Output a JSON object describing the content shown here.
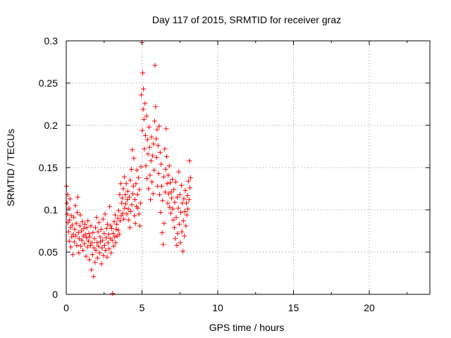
{
  "chart_data": {
    "type": "scatter",
    "title": "Day 117 of 2015, SRMTID for receiver graz",
    "xlabel": "GPS time / hours",
    "ylabel": "SRMTID / TECUs",
    "xlim": [
      0,
      24
    ],
    "ylim": [
      0,
      0.3
    ],
    "xticks": [
      0,
      5,
      10,
      15,
      20
    ],
    "xtick_labels": [
      "0",
      "5",
      "10",
      "15",
      "20"
    ],
    "yticks": [
      0,
      0.05,
      0.1,
      0.15,
      0.2,
      0.25,
      0.3
    ],
    "ytick_labels": [
      "0",
      "0.05",
      "0.1",
      "0.15",
      "0.2",
      "0.25",
      "0.3"
    ],
    "grid": true,
    "marker": "+",
    "color": "#ff0000",
    "series": [
      {
        "points": [
          [
            0.02,
            0.128
          ],
          [
            0.05,
            0.108
          ],
          [
            0.08,
            0.095
          ],
          [
            0.1,
            0.118
          ],
          [
            0.12,
            0.085
          ],
          [
            0.15,
            0.074
          ],
          [
            0.18,
            0.102
          ],
          [
            0.2,
            0.063
          ],
          [
            0.22,
            0.088
          ],
          [
            0.25,
            0.113
          ],
          [
            0.28,
            0.079
          ],
          [
            0.3,
            0.056
          ],
          [
            0.33,
            0.093
          ],
          [
            0.36,
            0.068
          ],
          [
            0.4,
            0.082
          ],
          [
            0.43,
            0.047
          ],
          [
            0.46,
            0.071
          ],
          [
            0.5,
            0.091
          ],
          [
            0.53,
            0.062
          ],
          [
            0.56,
            0.077
          ],
          [
            0.6,
            0.105
          ],
          [
            0.63,
            0.069
          ],
          [
            0.66,
            0.084
          ],
          [
            0.7,
            0.058
          ],
          [
            0.73,
            0.097
          ],
          [
            0.76,
            0.115
          ],
          [
            0.8,
            0.073
          ],
          [
            0.83,
            0.049
          ],
          [
            0.86,
            0.066
          ],
          [
            0.9,
            0.081
          ],
          [
            0.93,
            0.094
          ],
          [
            0.96,
            0.057
          ],
          [
            1.0,
            0.075
          ],
          [
            1.03,
            0.064
          ],
          [
            1.06,
            0.086
          ],
          [
            1.1,
            0.052
          ],
          [
            1.13,
            0.069
          ],
          [
            1.16,
            0.078
          ],
          [
            1.2,
            0.06
          ],
          [
            1.23,
            0.083
          ],
          [
            1.26,
            0.071
          ],
          [
            1.3,
            0.045
          ],
          [
            1.33,
            0.067
          ],
          [
            1.36,
            0.079
          ],
          [
            1.4,
            0.056
          ],
          [
            1.43,
            0.087
          ],
          [
            1.46,
            0.063
          ],
          [
            1.5,
            0.072
          ],
          [
            1.53,
            0.041
          ],
          [
            1.56,
            0.068
          ],
          [
            1.6,
            0.058
          ],
          [
            1.63,
            0.081
          ],
          [
            1.66,
            0.029
          ],
          [
            1.7,
            0.061
          ],
          [
            1.73,
            0.047
          ],
          [
            1.76,
            0.073
          ],
          [
            1.8,
            0.021
          ],
          [
            1.83,
            0.055
          ],
          [
            1.86,
            0.066
          ],
          [
            1.9,
            0.038
          ],
          [
            1.93,
            0.079
          ],
          [
            1.96,
            0.052
          ],
          [
            2.0,
            0.091
          ],
          [
            2.03,
            0.061
          ],
          [
            2.06,
            0.043
          ],
          [
            2.1,
            0.074
          ],
          [
            2.13,
            0.057
          ],
          [
            2.16,
            0.085
          ],
          [
            2.2,
            0.049
          ],
          [
            2.23,
            0.068
          ],
          [
            2.26,
            0.062
          ],
          [
            2.3,
            0.077
          ],
          [
            2.33,
            0.036
          ],
          [
            2.36,
            0.055
          ],
          [
            2.4,
            0.064
          ],
          [
            2.43,
            0.089
          ],
          [
            2.46,
            0.046
          ],
          [
            2.5,
            0.072
          ],
          [
            2.53,
            0.058
          ],
          [
            2.56,
            0.095
          ],
          [
            2.6,
            0.052
          ],
          [
            2.63,
            0.067
          ],
          [
            2.66,
            0.078
          ],
          [
            2.7,
            0.044
          ],
          [
            2.73,
            0.083
          ],
          [
            2.76,
            0.061
          ],
          [
            2.8,
            0.071
          ],
          [
            2.83,
            0.054
          ],
          [
            2.86,
            0.104
          ],
          [
            2.9,
            0.066
          ],
          [
            2.93,
            0.081
          ],
          [
            2.96,
            0.049
          ],
          [
            3.0,
            0.078
          ],
          [
            3.03,
            0.064
          ],
          [
            3.06,
            0.001
          ],
          [
            3.1,
            0.072
          ],
          [
            3.13,
            0.057
          ],
          [
            3.16,
            0.086
          ],
          [
            3.2,
            0.068
          ],
          [
            3.23,
            0.094
          ],
          [
            3.26,
            0.061
          ],
          [
            3.3,
            0.077
          ],
          [
            3.33,
            0.083
          ],
          [
            3.36,
            0.069
          ],
          [
            3.4,
            0.09
          ],
          [
            3.43,
            0.076
          ],
          [
            3.46,
            0.099
          ],
          [
            3.5,
            0.071
          ],
          [
            3.53,
            0.118
          ],
          [
            3.56,
            0.087
          ],
          [
            3.6,
            0.131
          ],
          [
            3.63,
            0.093
          ],
          [
            3.66,
            0.108
          ],
          [
            3.7,
            0.114
          ],
          [
            3.73,
            0.096
          ],
          [
            3.76,
            0.125
          ],
          [
            3.8,
            0.089
          ],
          [
            3.83,
            0.139
          ],
          [
            3.86,
            0.102
          ],
          [
            3.9,
            0.118
          ],
          [
            3.93,
            0.107
          ],
          [
            3.96,
            0.131
          ],
          [
            4.0,
            0.095
          ],
          [
            4.03,
            0.112
          ],
          [
            4.06,
            0.122
          ],
          [
            4.1,
            0.101
          ],
          [
            4.13,
            0.088
          ],
          [
            4.16,
            0.115
          ],
          [
            4.2,
            0.079
          ],
          [
            4.23,
            0.135
          ],
          [
            4.26,
            0.098
          ],
          [
            4.3,
            0.148
          ],
          [
            4.33,
            0.106
          ],
          [
            4.36,
            0.171
          ],
          [
            4.4,
            0.119
          ],
          [
            4.43,
            0.128
          ],
          [
            4.46,
            0.161
          ],
          [
            4.5,
            0.093
          ],
          [
            4.53,
            0.112
          ],
          [
            4.56,
            0.084
          ],
          [
            4.6,
            0.131
          ],
          [
            4.63,
            0.104
          ],
          [
            4.66,
            0.147
          ],
          [
            4.7,
            0.118
          ],
          [
            4.73,
            0.102
          ],
          [
            4.76,
            0.138
          ],
          [
            4.8,
            0.095
          ],
          [
            4.83,
            0.124
          ],
          [
            4.86,
            0.081
          ],
          [
            4.9,
            0.108
          ],
          [
            4.93,
            0.151
          ],
          [
            4.96,
            0.236
          ],
          [
            5.0,
            0.298
          ],
          [
            5.02,
            0.194
          ],
          [
            5.05,
            0.262
          ],
          [
            5.08,
            0.219
          ],
          [
            5.1,
            0.243
          ],
          [
            5.13,
            0.207
          ],
          [
            5.16,
            0.172
          ],
          [
            5.2,
            0.226
          ],
          [
            5.23,
            0.188
          ],
          [
            5.26,
            0.152
          ],
          [
            5.3,
            0.211
          ],
          [
            5.33,
            0.137
          ],
          [
            5.36,
            0.183
          ],
          [
            5.4,
            0.166
          ],
          [
            5.43,
            0.125
          ],
          [
            5.46,
            0.198
          ],
          [
            5.5,
            0.174
          ],
          [
            5.53,
            0.141
          ],
          [
            5.56,
            0.112
          ],
          [
            5.6,
            0.158
          ],
          [
            5.63,
            0.186
          ],
          [
            5.66,
            0.133
          ],
          [
            5.7,
            0.164
          ],
          [
            5.73,
            0.119
          ],
          [
            5.76,
            0.178
          ],
          [
            5.8,
            0.147
          ],
          [
            5.83,
            0.205
          ],
          [
            5.86,
            0.271
          ],
          [
            5.9,
            0.222
          ],
          [
            5.93,
            0.184
          ],
          [
            5.96,
            0.162
          ],
          [
            6.0,
            0.195
          ],
          [
            6.03,
            0.128
          ],
          [
            6.06,
            0.176
          ],
          [
            6.1,
            0.143
          ],
          [
            6.13,
            0.199
          ],
          [
            6.16,
            0.118
          ],
          [
            6.2,
            0.168
          ],
          [
            6.23,
            0.097
          ],
          [
            6.26,
            0.154
          ],
          [
            6.3,
            0.128
          ],
          [
            6.33,
            0.073
          ],
          [
            6.36,
            0.111
          ],
          [
            6.4,
            0.059
          ],
          [
            6.43,
            0.139
          ],
          [
            6.46,
            0.084
          ],
          [
            6.5,
            0.172
          ],
          [
            6.53,
            0.121
          ],
          [
            6.56,
            0.148
          ],
          [
            6.6,
            0.196
          ],
          [
            6.63,
            0.163
          ],
          [
            6.66,
            0.131
          ],
          [
            6.7,
            0.108
          ],
          [
            6.73,
            0.141
          ],
          [
            6.76,
            0.119
          ],
          [
            6.8,
            0.152
          ],
          [
            6.83,
            0.103
          ],
          [
            6.86,
            0.132
          ],
          [
            6.9,
            0.096
          ],
          [
            6.93,
            0.121
          ],
          [
            6.96,
            0.114
          ],
          [
            7.0,
            0.136
          ],
          [
            7.03,
            0.101
          ],
          [
            7.06,
            0.088
          ],
          [
            7.1,
            0.124
          ],
          [
            7.13,
            0.079
          ],
          [
            7.16,
            0.109
          ],
          [
            7.2,
            0.066
          ],
          [
            7.23,
            0.133
          ],
          [
            7.26,
            0.091
          ],
          [
            7.3,
            0.058
          ],
          [
            7.33,
            0.115
          ],
          [
            7.36,
            0.072
          ],
          [
            7.4,
            0.102
          ],
          [
            7.43,
            0.145
          ],
          [
            7.46,
            0.083
          ],
          [
            7.5,
            0.118
          ],
          [
            7.53,
            0.061
          ],
          [
            7.56,
            0.097
          ],
          [
            7.6,
            0.129
          ],
          [
            7.63,
            0.074
          ],
          [
            7.66,
            0.108
          ],
          [
            7.7,
            0.051
          ],
          [
            7.73,
            0.087
          ],
          [
            7.76,
            0.113
          ],
          [
            7.8,
            0.069
          ],
          [
            7.83,
            0.098
          ],
          [
            7.86,
            0.123
          ],
          [
            7.9,
            0.081
          ],
          [
            7.93,
            0.108
          ],
          [
            7.96,
            0.094
          ],
          [
            8.0,
            0.117
          ],
          [
            8.03,
            0.101
          ],
          [
            8.06,
            0.134
          ],
          [
            8.1,
            0.112
          ],
          [
            8.13,
            0.158
          ],
          [
            8.16,
            0.126
          ],
          [
            8.2,
            0.138
          ]
        ]
      }
    ]
  }
}
